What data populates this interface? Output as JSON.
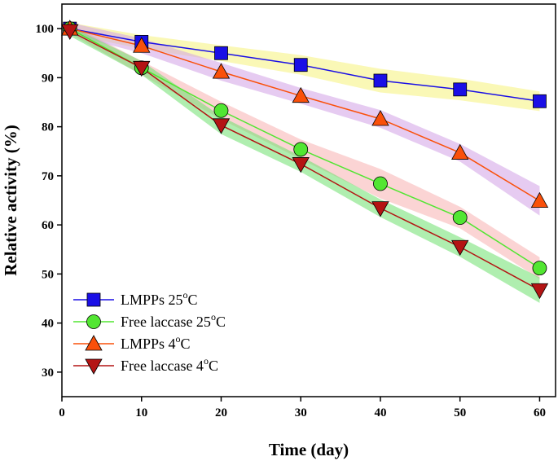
{
  "chart_data": {
    "type": "line",
    "title": "",
    "xlabel": "Time (day)",
    "ylabel": "Relative activity (%)",
    "xlim": [
      0,
      62
    ],
    "ylim": [
      25,
      105
    ],
    "xticks": [
      0,
      10,
      20,
      30,
      40,
      50,
      60
    ],
    "yticks": [
      30,
      40,
      50,
      60,
      70,
      80,
      90,
      100
    ],
    "grid": false,
    "legend_position": "bottom-left",
    "series": [
      {
        "name": "LMPPs 25",
        "sup": "o",
        "unit": "C",
        "marker": "square",
        "color": "#1a0fe6",
        "band_color": "#f5f37a",
        "x": [
          1,
          10,
          20,
          30,
          40,
          50,
          60
        ],
        "values": [
          100,
          97.3,
          95.0,
          92.6,
          89.4,
          87.6,
          85.2
        ],
        "err": [
          1.2,
          1.4,
          1.6,
          2.0,
          2.4,
          2.2,
          2.0
        ]
      },
      {
        "name": "Free laccase 25",
        "sup": "o",
        "unit": "C",
        "marker": "circle",
        "color": "#52e632",
        "band_color": "#f7b0b0",
        "x": [
          1,
          10,
          20,
          30,
          40,
          50,
          60
        ],
        "values": [
          100,
          92.0,
          83.3,
          75.4,
          68.4,
          61.5,
          51.2
        ],
        "err": [
          1.0,
          1.4,
          1.8,
          2.0,
          3.0,
          2.2,
          2.2
        ]
      },
      {
        "name": "LMPPs 4",
        "sup": "o",
        "unit": "C",
        "marker": "triangle-up",
        "color": "#fa500a",
        "band_color": "#d2a0e6",
        "x": [
          1,
          10,
          20,
          30,
          40,
          50,
          60
        ],
        "values": [
          100,
          96.5,
          91.2,
          86.3,
          81.6,
          74.7,
          64.9
        ],
        "err": [
          1.2,
          1.5,
          1.8,
          1.6,
          1.8,
          1.8,
          3.0
        ]
      },
      {
        "name": "Free laccase 4",
        "sup": "o",
        "unit": "C",
        "marker": "triangle-down",
        "color": "#b41414",
        "band_color": "#6ee06e",
        "x": [
          1,
          10,
          20,
          30,
          40,
          50,
          60
        ],
        "values": [
          99.5,
          92.0,
          80.3,
          72.4,
          63.4,
          55.5,
          46.7
        ],
        "err": [
          1.0,
          1.4,
          1.8,
          1.6,
          1.8,
          2.0,
          2.6
        ]
      }
    ]
  }
}
